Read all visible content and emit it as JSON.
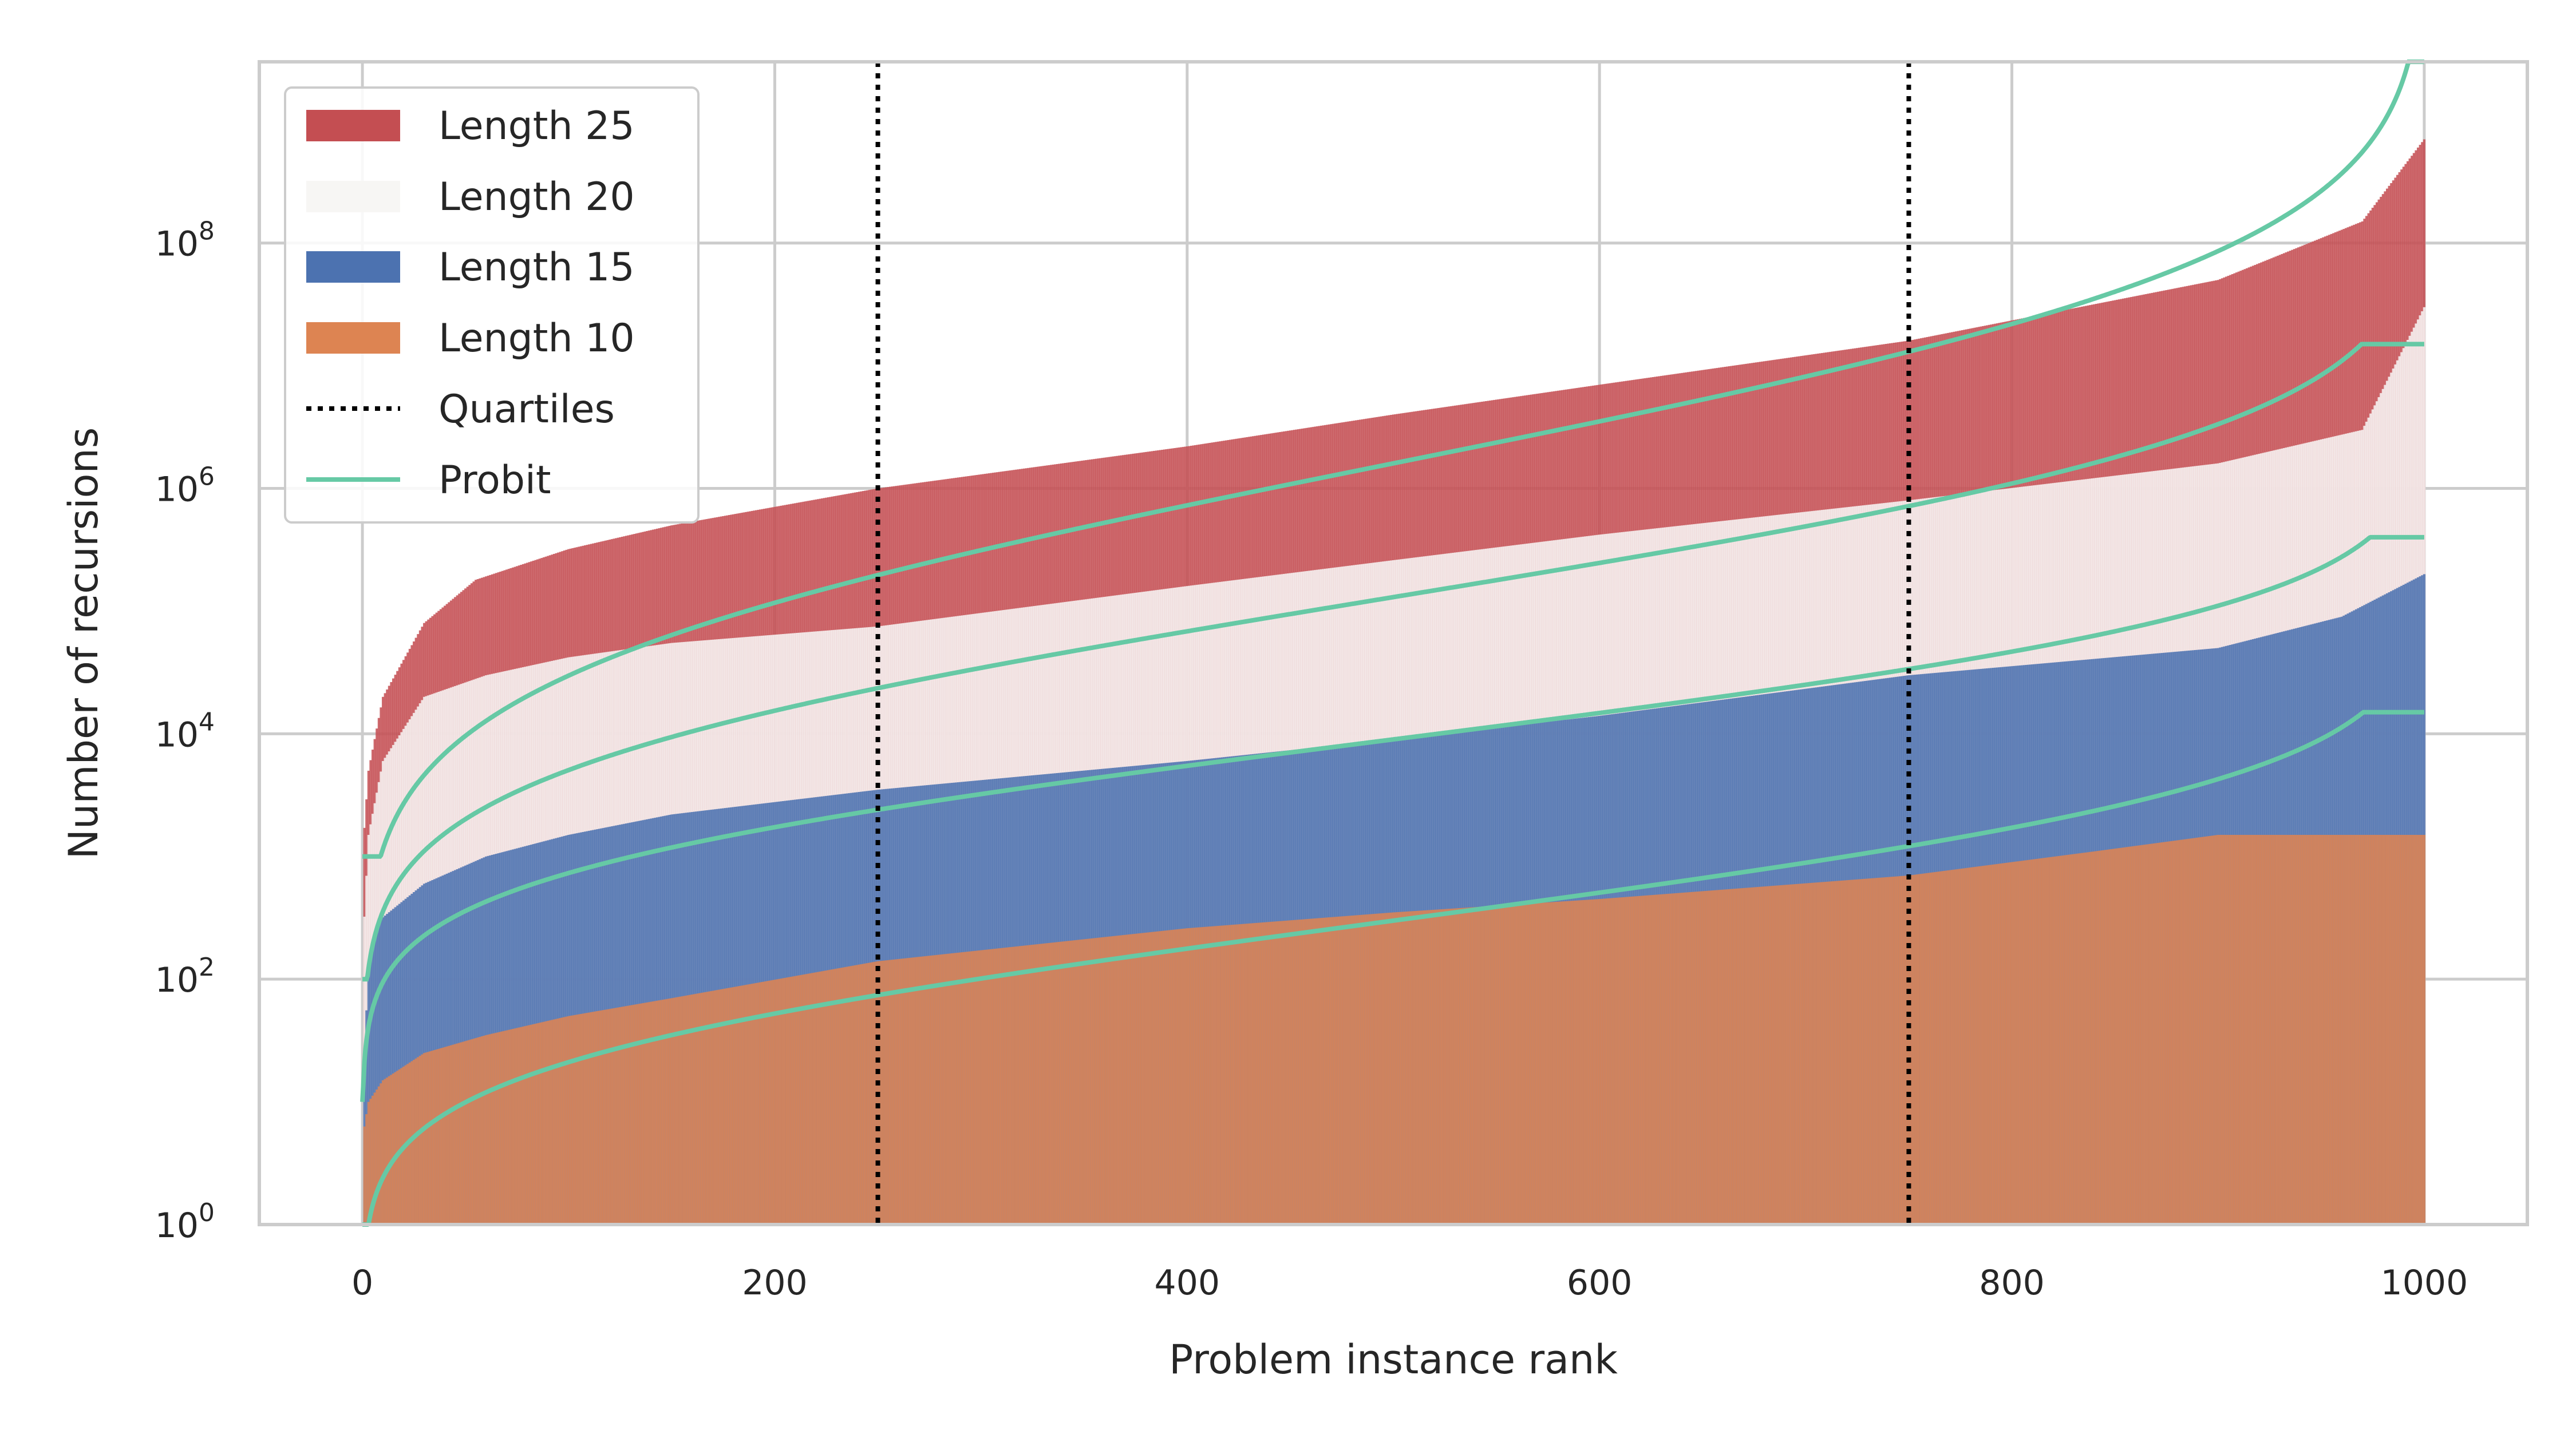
{
  "colors": {
    "length25": "#c44e52",
    "length20": "#f7f6f4",
    "length15": "#4c72b0",
    "length10": "#dd8452",
    "probit": "#66c9a5",
    "quartiles": "#000000",
    "grid": "#cccccc",
    "axes_edge": "#cccccc"
  },
  "chart_data": {
    "type": "bar",
    "xlabel": "Problem instance rank",
    "ylabel": "Number of recursions",
    "xlim": [
      -50,
      1050
    ],
    "ylim": [
      1,
      3000000000
    ],
    "yscale": "log",
    "x_ticks": [
      "0",
      "200",
      "400",
      "600",
      "800",
      "1000"
    ],
    "y_ticks": [
      {
        "base": "10",
        "exp": "0"
      },
      {
        "base": "10",
        "exp": "2"
      },
      {
        "base": "10",
        "exp": "4"
      },
      {
        "base": "10",
        "exp": "6"
      },
      {
        "base": "10",
        "exp": "8"
      }
    ],
    "grid": true,
    "legend_position": "upper-left",
    "n_instances": 1000,
    "series": [
      {
        "name": "Length 25",
        "x": [
          0,
          3,
          10,
          30,
          55,
          100,
          150,
          250,
          400,
          500,
          600,
          750,
          900,
          970,
          1000
        ],
        "values": [
          1000,
          5000,
          20000,
          80000,
          180000,
          320000,
          500000,
          1000000,
          2200000,
          4000000,
          7000000,
          16000000,
          50000000,
          150000000,
          700000000
        ]
      },
      {
        "name": "Length 20",
        "x": [
          0,
          3,
          10,
          30,
          60,
          100,
          150,
          250,
          400,
          500,
          600,
          750,
          900,
          970,
          1000
        ],
        "values": [
          150,
          1500,
          6000,
          20000,
          30000,
          42000,
          55000,
          75000,
          160000,
          260000,
          420000,
          800000,
          1600000,
          3000000,
          30000000
        ]
      },
      {
        "name": "Length 15",
        "x": [
          0,
          3,
          8,
          30,
          60,
          100,
          150,
          250,
          400,
          500,
          600,
          750,
          900,
          960,
          1000
        ],
        "values": [
          12,
          120,
          300,
          600,
          1000,
          1500,
          2200,
          3500,
          6000,
          9000,
          14000,
          30000,
          50000,
          90000,
          200000
        ]
      },
      {
        "name": "Length 10",
        "x": [
          0,
          3,
          10,
          30,
          60,
          100,
          150,
          250,
          400,
          500,
          600,
          750,
          840,
          900,
          1000
        ],
        "values": [
          5,
          10,
          15,
          25,
          35,
          50,
          70,
          140,
          260,
          350,
          450,
          700,
          1100,
          1500,
          1500
        ]
      }
    ],
    "quartiles": {
      "name": "Quartiles",
      "x": [
        250,
        750
      ]
    },
    "probit": {
      "name": "Probit",
      "curves": [
        {
          "median": 1600000,
          "slope_decades_per_sd": 1.35,
          "start": 1000,
          "end": 3000000000
        },
        {
          "median": 130000,
          "slope_decades_per_sd": 1.1,
          "start": 100,
          "end": 15000000
        },
        {
          "median": 9000,
          "slope_decades_per_sd": 0.85,
          "start": 10,
          "end": 400000
        },
        {
          "median": 300,
          "slope_decades_per_sd": 0.9,
          "start": 1,
          "end": 15000
        }
      ]
    },
    "legend": [
      "Length 25",
      "Length 20",
      "Length 15",
      "Length 10",
      "Quartiles",
      "Probit"
    ]
  }
}
